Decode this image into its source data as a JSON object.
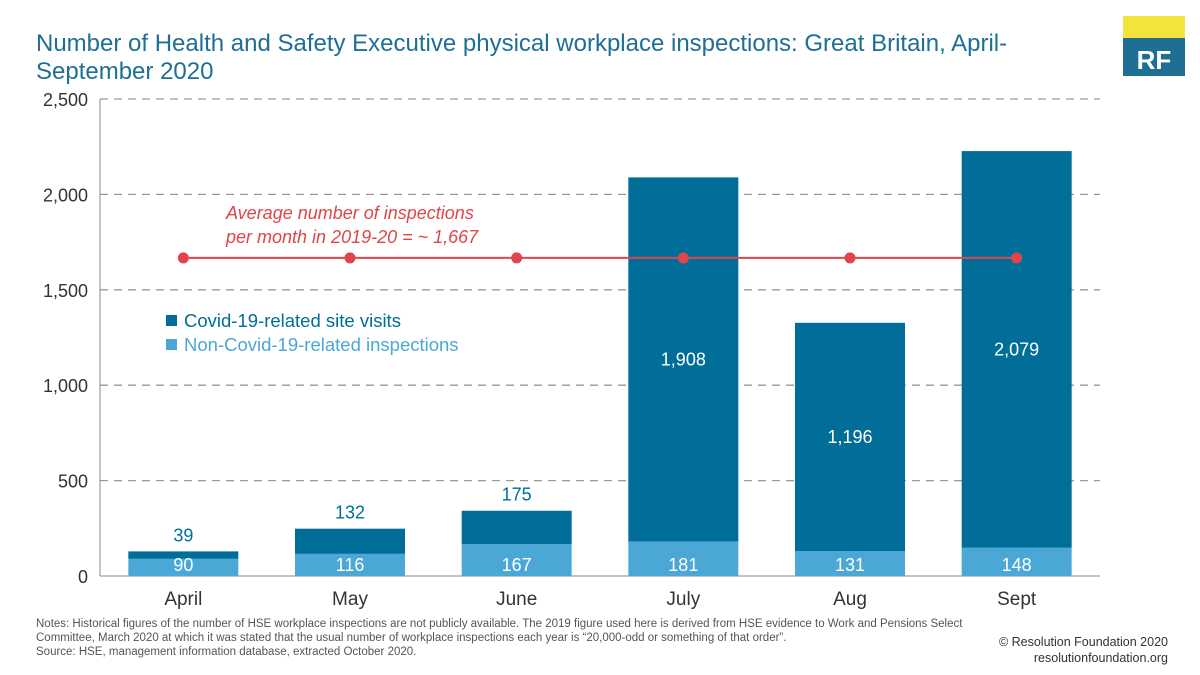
{
  "title": "Number of Health and Safety Executive physical workplace inspections: Great Britain, April-September 2020",
  "logo_text": "RF",
  "colors": {
    "covid": "#006e98",
    "non_covid": "#4ba8d6",
    "average": "#e0454a",
    "grid": "#999999",
    "text": "#333333",
    "title": "#1f6f95",
    "logo_bg": "#1f6f95",
    "logo_accent": "#f3e43c"
  },
  "chart_data": {
    "type": "bar",
    "stacked": true,
    "categories": [
      "April",
      "May",
      "June",
      "July",
      "Aug",
      "Sept"
    ],
    "series": [
      {
        "name": "Non-Covid-19-related inspections",
        "values": [
          90,
          116,
          167,
          181,
          131,
          148
        ]
      },
      {
        "name": "Covid-19-related site visits",
        "values": [
          39,
          132,
          175,
          1908,
          1196,
          2079
        ]
      }
    ],
    "data_labels": {
      "Non-Covid-19-related inspections": [
        "90",
        "116",
        "167",
        "181",
        "131",
        "148"
      ],
      "Covid-19-related site visits": [
        "39",
        "132",
        "175",
        "1,908",
        "1,196",
        "2,079"
      ]
    },
    "average_line": {
      "value": 1667,
      "label_lines": [
        "Average number of inspections",
        "per month in 2019-20 = ~ 1,667"
      ]
    },
    "ylim": [
      0,
      2500
    ],
    "yticks": [
      0,
      500,
      1000,
      1500,
      2000,
      2500
    ],
    "ytick_labels": [
      "0",
      "500",
      "1,000",
      "1,500",
      "2,000",
      "2,500"
    ],
    "grid": true,
    "legend_placement": "upper-left",
    "legend": [
      "Covid-19-related site visits",
      "Non-Covid-19-related inspections"
    ]
  },
  "notes": "Notes: Historical figures of the number of HSE workplace inspections are not publicly available. The 2019 figure used here is derived from HSE evidence to Work and Pensions Select Committee, March 2020 at which it was stated that the usual number of workplace inspections each year is “20,000-odd or something of that order”.",
  "source": "Source: HSE, management information database, extracted October 2020.",
  "copyright": "© Resolution Foundation 2020",
  "website": "resolutionfoundation.org"
}
